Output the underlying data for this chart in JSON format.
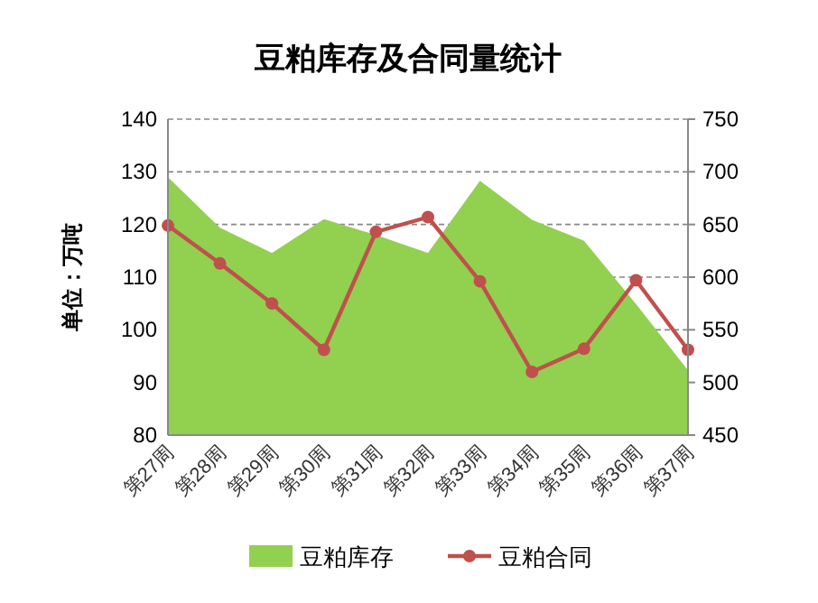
{
  "chart_data": {
    "type": "area",
    "title": "豆粕库存及合同量统计",
    "ylabel": "单位：万吨",
    "categories": [
      "第27周",
      "第28周",
      "第29周",
      "第30周",
      "第31周",
      "第32周",
      "第33周",
      "第34周",
      "第35周",
      "第36周",
      "第37周"
    ],
    "series": [
      {
        "name": "豆粕库存",
        "type": "area",
        "color": "#92d050",
        "values": [
          129,
          119.4,
          114.6,
          121,
          118,
          114.6,
          128.3,
          120.9,
          116.9,
          104.9,
          92.3
        ]
      },
      {
        "name": "豆粕合同",
        "type": "line",
        "axis": "y2",
        "color": "#c0504d",
        "marker": "circle",
        "values": [
          649,
          613,
          575,
          531,
          643,
          657,
          596,
          510,
          532,
          597,
          531
        ]
      }
    ],
    "ylim": [
      80,
      140
    ],
    "yticks": [
      80,
      90,
      100,
      110,
      120,
      130,
      140
    ],
    "y2lim": [
      450,
      750
    ],
    "y2ticks": [
      450,
      500,
      550,
      600,
      650,
      700,
      750
    ],
    "grid": "y",
    "legend": "bottom"
  }
}
